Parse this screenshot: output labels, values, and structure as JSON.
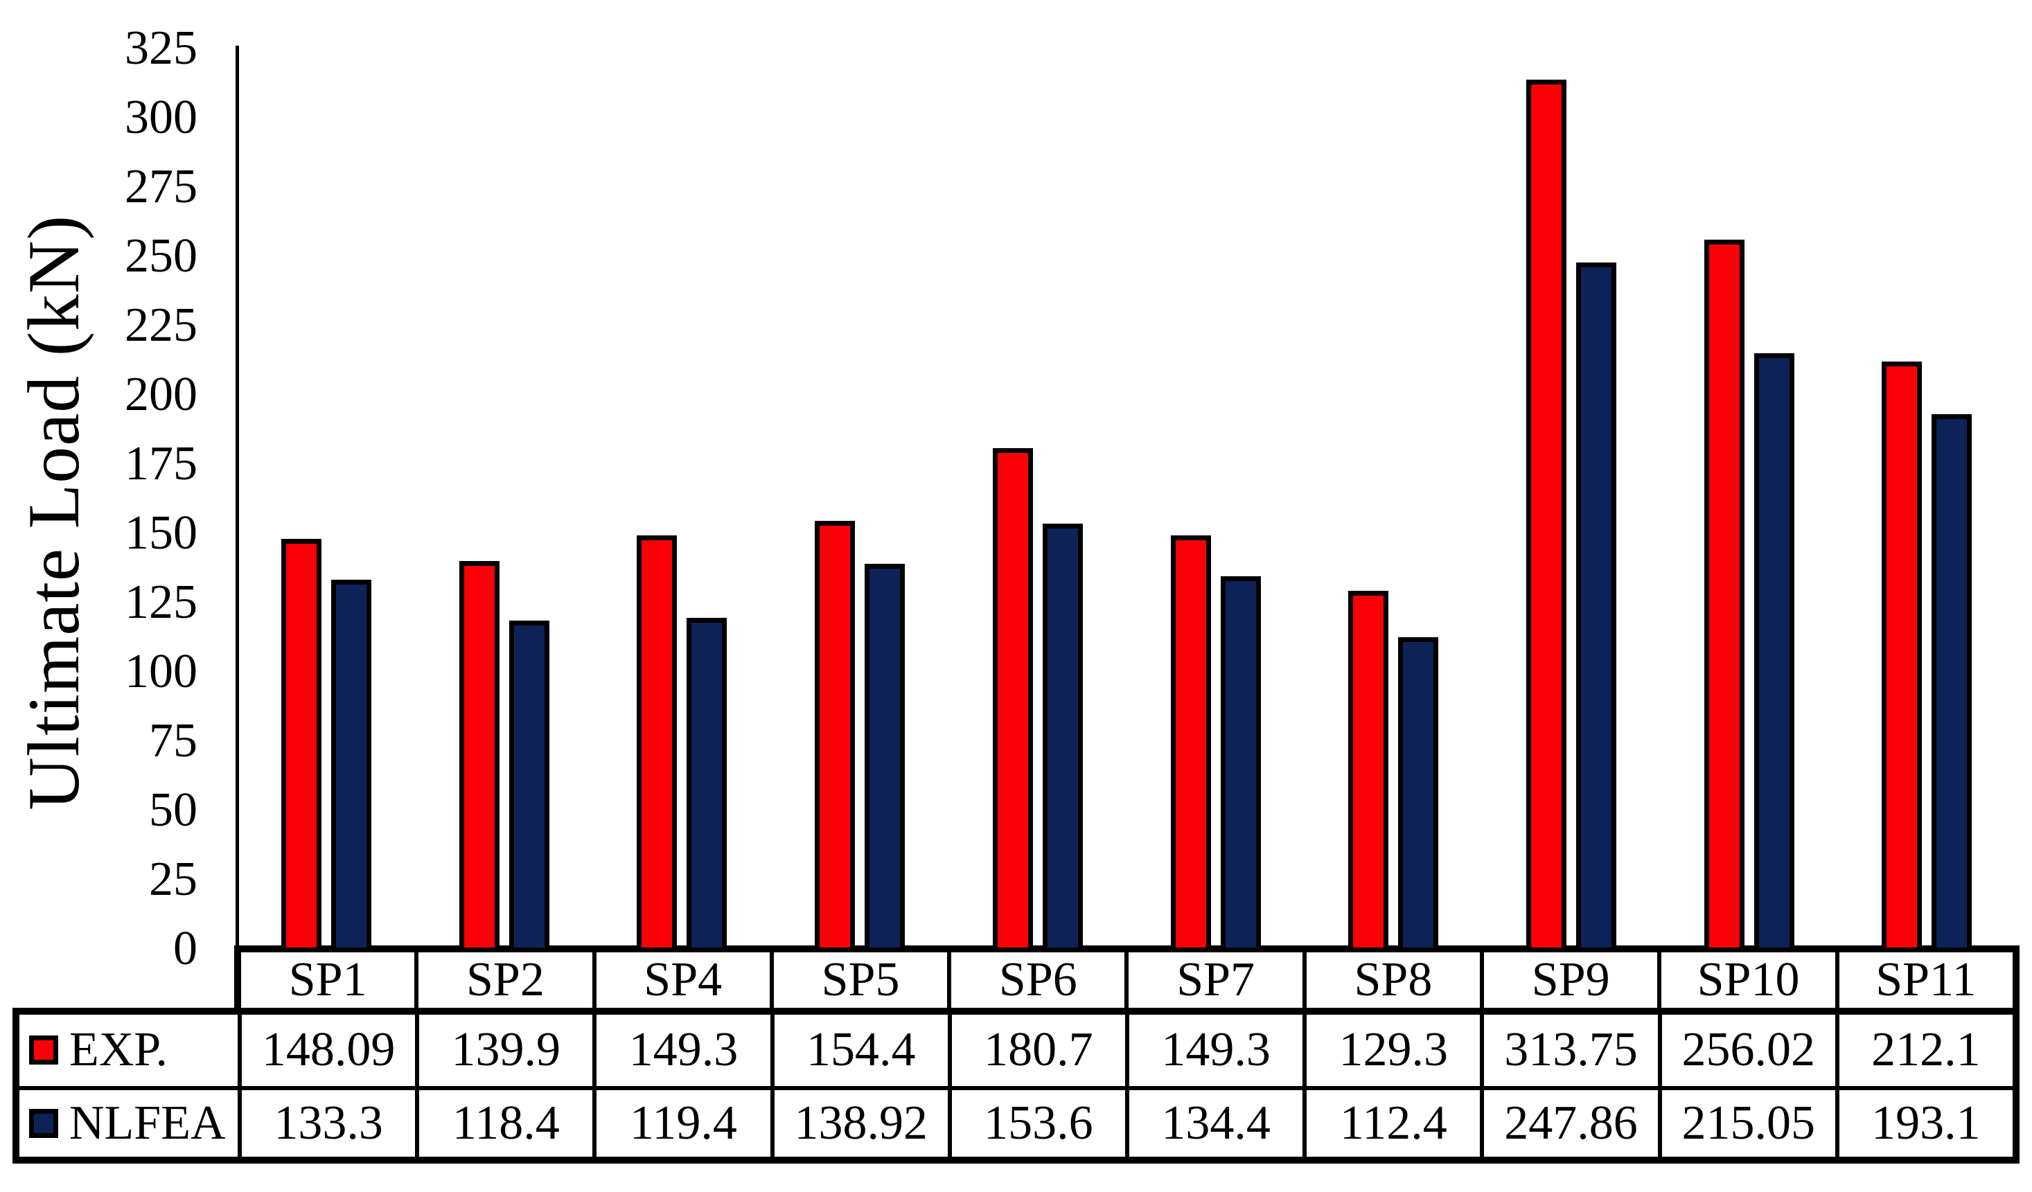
{
  "chart_data": {
    "type": "bar",
    "title": "",
    "xlabel": "",
    "ylabel": "Ultimate Load (kN)",
    "ylim": [
      0,
      325
    ],
    "ytick_step": 25,
    "yticks": [
      0,
      25,
      50,
      75,
      100,
      125,
      150,
      175,
      200,
      225,
      250,
      275,
      300,
      325
    ],
    "grid": false,
    "legend_position": "table-left",
    "categories": [
      "SP1",
      "SP2",
      "SP4",
      "SP5",
      "SP6",
      "SP7",
      "SP8",
      "SP9",
      "SP10",
      "SP11"
    ],
    "series": [
      {
        "name": "EXP.",
        "color": "#FB0007",
        "values": [
          148.09,
          139.9,
          149.3,
          154.4,
          180.7,
          149.3,
          129.3,
          313.75,
          256.02,
          212.1
        ]
      },
      {
        "name": "NLFEA",
        "color": "#0D2357",
        "values": [
          133.3,
          118.4,
          119.4,
          138.92,
          153.6,
          134.4,
          112.4,
          247.86,
          215.05,
          193.1
        ]
      }
    ]
  }
}
